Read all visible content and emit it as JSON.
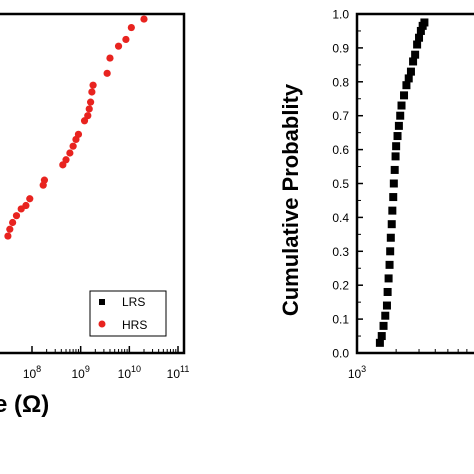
{
  "chart_data": [
    {
      "type": "scatter",
      "xscale": "log",
      "xlabel_fragment": "e (Ω)",
      "ylabel": "",
      "xlim": [
        100000,
        100000000000
      ],
      "ylim": [
        0,
        1
      ],
      "x_tick_labels": [
        {
          "base": "10",
          "exp": "8",
          "value": 100000000
        },
        {
          "base": "10",
          "exp": "9",
          "value": 1000000000
        },
        {
          "base": "10",
          "exp": "10",
          "value": 10000000000
        },
        {
          "base": "10",
          "exp": "11",
          "value": 100000000000
        }
      ],
      "legend": {
        "position": "bottom-right",
        "entries": [
          {
            "label": "LRS",
            "color": "#000000",
            "marker": "square"
          },
          {
            "label": "HRS",
            "color": "#e8231f",
            "marker": "circle"
          }
        ]
      },
      "series": [
        {
          "name": "HRS",
          "color": "#e8231f",
          "x": [
            20000000000,
            11000000000,
            8500000000,
            6000000000,
            4000000000,
            3500000000,
            1800000000,
            1700000000,
            1600000000,
            1500000000,
            1400000000,
            1200000000,
            900000000,
            800000000,
            700000000,
            600000000,
            500000000,
            430000000,
            180000000,
            170000000,
            90000000,
            75000000,
            60000000,
            48000000,
            40000000,
            35000000,
            32000000
          ],
          "y": [
            0.985,
            0.96,
            0.925,
            0.905,
            0.87,
            0.825,
            0.79,
            0.77,
            0.74,
            0.72,
            0.7,
            0.685,
            0.645,
            0.63,
            0.61,
            0.59,
            0.57,
            0.555,
            0.51,
            0.495,
            0.455,
            0.435,
            0.425,
            0.405,
            0.385,
            0.365,
            0.345
          ]
        }
      ]
    },
    {
      "type": "scatter",
      "xscale": "log",
      "xlabel": "",
      "ylabel": "Cumulative Probablity",
      "xlim": [
        1000,
        10000
      ],
      "ylim": [
        0,
        1
      ],
      "x_tick_labels": [
        {
          "base": "10",
          "exp": "3",
          "value": 1000
        }
      ],
      "y_tick_labels": [
        "0.0",
        "0.1",
        "0.2",
        "0.3",
        "0.4",
        "0.5",
        "0.6",
        "0.7",
        "0.8",
        "0.9",
        "1.0"
      ],
      "series": [
        {
          "name": "LRS",
          "color": "#000000",
          "x": [
            1500,
            1550,
            1600,
            1650,
            1700,
            1720,
            1750,
            1780,
            1800,
            1820,
            1850,
            1870,
            1900,
            1920,
            1950,
            1980,
            2000,
            2050,
            2100,
            2150,
            2200,
            2300,
            2400,
            2500,
            2600,
            2700,
            2800,
            2900,
            3000,
            3100,
            3200,
            3300
          ],
          "y": [
            0.03,
            0.05,
            0.08,
            0.11,
            0.14,
            0.18,
            0.22,
            0.26,
            0.3,
            0.34,
            0.38,
            0.42,
            0.46,
            0.5,
            0.54,
            0.58,
            0.61,
            0.64,
            0.67,
            0.7,
            0.73,
            0.76,
            0.79,
            0.81,
            0.83,
            0.86,
            0.88,
            0.91,
            0.93,
            0.95,
            0.965,
            0.975
          ]
        }
      ]
    }
  ]
}
